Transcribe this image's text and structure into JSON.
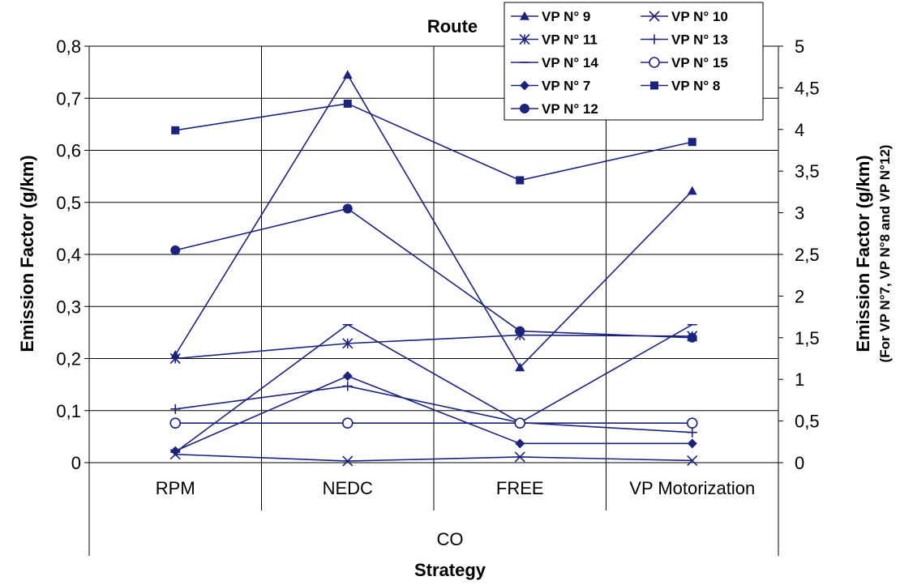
{
  "chart_data": {
    "type": "line",
    "title": "Route",
    "categories": [
      "RPM",
      "NEDC",
      "FREE",
      "VP Motorization"
    ],
    "group_label": "CO",
    "xlabel": "Strategy",
    "ylabel": "Emission Factor (g/km)",
    "y2label": "Emission Factor (g/km)",
    "y2sublabel": "(For VP N°7, VP N°8 and VP N°12)",
    "ylim": [
      0,
      0.8
    ],
    "y2lim": [
      0,
      5
    ],
    "yticks": [
      "0",
      "0,1",
      "0,2",
      "0,3",
      "0,4",
      "0,5",
      "0,6",
      "0,7",
      "0,8"
    ],
    "y2ticks": [
      "0",
      "0,5",
      "1",
      "1,5",
      "2",
      "2,5",
      "3",
      "3,5",
      "4",
      "4,5",
      "5"
    ],
    "grid": true,
    "legend_position": "top-right",
    "color": "#1a237e",
    "series": [
      {
        "name": "VP N° 9",
        "axis": "left",
        "marker": "triangle",
        "values": [
          0.207,
          0.745,
          0.183,
          0.522
        ]
      },
      {
        "name": "VP N° 10",
        "axis": "left",
        "marker": "x",
        "values": [
          0.016,
          0.003,
          0.011,
          0.004
        ]
      },
      {
        "name": "VP N° 11",
        "axis": "left",
        "marker": "asterisk",
        "values": [
          0.2,
          0.229,
          0.245,
          0.243
        ]
      },
      {
        "name": "VP N° 13",
        "axis": "left",
        "marker": "plus",
        "values": [
          0.103,
          0.147,
          0.077,
          0.058
        ]
      },
      {
        "name": "VP N° 14",
        "axis": "left",
        "marker": "dash",
        "values": [
          0.02,
          0.265,
          0.077,
          0.265
        ]
      },
      {
        "name": "VP N° 15",
        "axis": "left",
        "marker": "circle-open",
        "values": [
          0.076,
          0.076,
          0.076,
          0.076
        ]
      },
      {
        "name": "VP N° 7",
        "axis": "right",
        "marker": "diamond",
        "values": [
          0.14,
          1.04,
          0.23,
          0.23
        ]
      },
      {
        "name": "VP N° 8",
        "axis": "right",
        "marker": "square",
        "values": [
          3.99,
          4.31,
          3.39,
          3.85
        ]
      },
      {
        "name": "VP N° 12",
        "axis": "right",
        "marker": "circle",
        "values": [
          2.55,
          3.05,
          1.58,
          1.5
        ]
      }
    ]
  }
}
